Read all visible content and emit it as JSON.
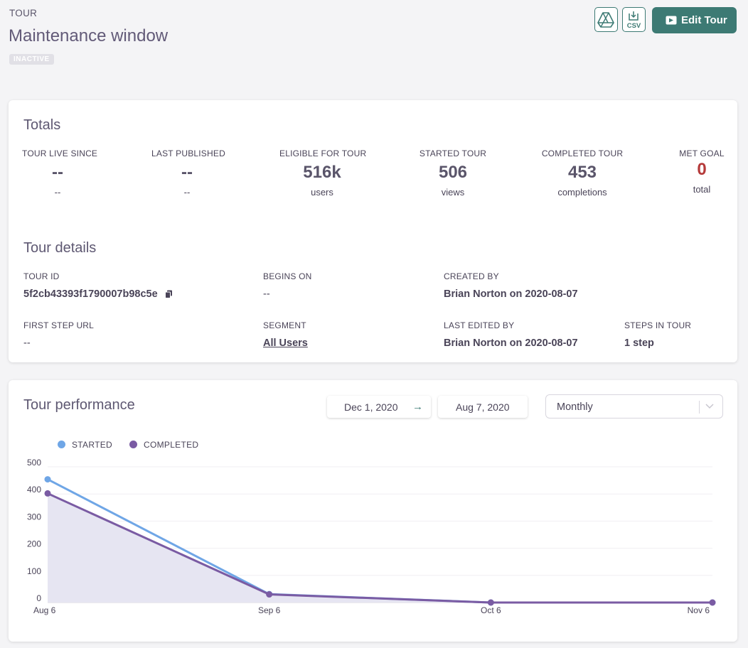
{
  "header": {
    "kicker": "TOUR",
    "title": "Maintenance window",
    "status_badge": "INACTIVE",
    "drive_icon": "google-drive-icon",
    "csv_label": "CSV",
    "edit_label": "Edit Tour"
  },
  "totals": {
    "title": "Totals",
    "stats": [
      {
        "label": "TOUR LIVE SINCE",
        "value": "--",
        "sub": "--"
      },
      {
        "label": "LAST PUBLISHED",
        "value": "--",
        "sub": "--"
      },
      {
        "label": "ELIGIBLE FOR TOUR",
        "value": "516k",
        "sub": "users"
      },
      {
        "label": "STARTED TOUR",
        "value": "506",
        "sub": "views"
      },
      {
        "label": "COMPLETED TOUR",
        "value": "453",
        "sub": "completions"
      },
      {
        "label": "MET GOAL",
        "value": "0",
        "sub": "total"
      }
    ]
  },
  "details": {
    "title": "Tour details",
    "tour_id_label": "TOUR ID",
    "tour_id": "5f2cb43393f1790007b98c5e",
    "begins_label": "BEGINS ON",
    "begins": "--",
    "created_label": "CREATED BY",
    "created": "Brian Norton on 2020-08-07",
    "first_url_label": "FIRST STEP URL",
    "first_url": "--",
    "segment_label": "SEGMENT",
    "segment": "All Users",
    "edited_label": "LAST EDITED BY",
    "edited": "Brian Norton on 2020-08-07",
    "steps_label": "STEPS IN TOUR",
    "steps": "1 step"
  },
  "performance": {
    "title": "Tour performance",
    "date_start": "Dec 1, 2020",
    "date_end": "Aug 7, 2020",
    "interval": "Monthly"
  },
  "colors": {
    "accent": "#3d7a74",
    "started": "#6fa6e6",
    "completed": "#7a5ba3",
    "area": "#e6e5f2",
    "goal": "#b53a3a"
  },
  "chart_data": {
    "type": "line",
    "categories": [
      "Aug 6",
      "Sep 6",
      "Oct 6",
      "Nov 6"
    ],
    "series": [
      {
        "name": "STARTED",
        "values": [
          454,
          31,
          0,
          0
        ]
      },
      {
        "name": "COMPLETED",
        "values": [
          402,
          30,
          0,
          0
        ]
      }
    ],
    "yticks": [
      0,
      100,
      200,
      300,
      400,
      500
    ],
    "ylim": [
      0,
      500
    ],
    "legend": "top-left"
  }
}
